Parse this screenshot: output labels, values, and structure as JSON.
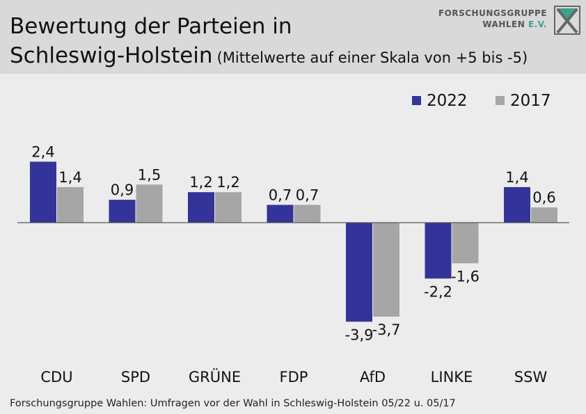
{
  "header": {
    "title_line1": "Bewertung der Parteien in",
    "title_line2": "Schleswig-Holstein",
    "subtitle": "(Mittelwerte auf einer Skala von +5 bis -5)",
    "logo_line1": "FORSCHUNGSGRUPPE",
    "logo_line2": "WAHLEN",
    "logo_suffix": "E.V."
  },
  "footer": {
    "source": "Forschungsgruppe Wahlen: Umfragen vor der Wahl in Schleswig-Holstein 05/22 u. 05/17"
  },
  "chart_data": {
    "type": "bar",
    "categories": [
      "CDU",
      "SPD",
      "GRÜNE",
      "FDP",
      "AfD",
      "LINKE",
      "SSW"
    ],
    "series": [
      {
        "name": "2022",
        "color": "#33339a",
        "values": [
          2.4,
          0.9,
          1.2,
          0.7,
          -3.9,
          -2.2,
          1.4
        ],
        "labels": [
          "2,4",
          "0,9",
          "1,2",
          "0,7",
          "-3,9",
          "-2,2",
          "1,4"
        ]
      },
      {
        "name": "2017",
        "color": "#a6a6a6",
        "values": [
          1.4,
          1.5,
          1.2,
          0.7,
          -3.7,
          -1.6,
          0.6
        ],
        "labels": [
          "1,4",
          "1,5",
          "1,2",
          "0,7",
          "-3,7",
          "-1,6",
          "0,6"
        ]
      }
    ],
    "legend_position": "top-right",
    "grid": false,
    "ylim": [
      -5,
      5
    ]
  }
}
